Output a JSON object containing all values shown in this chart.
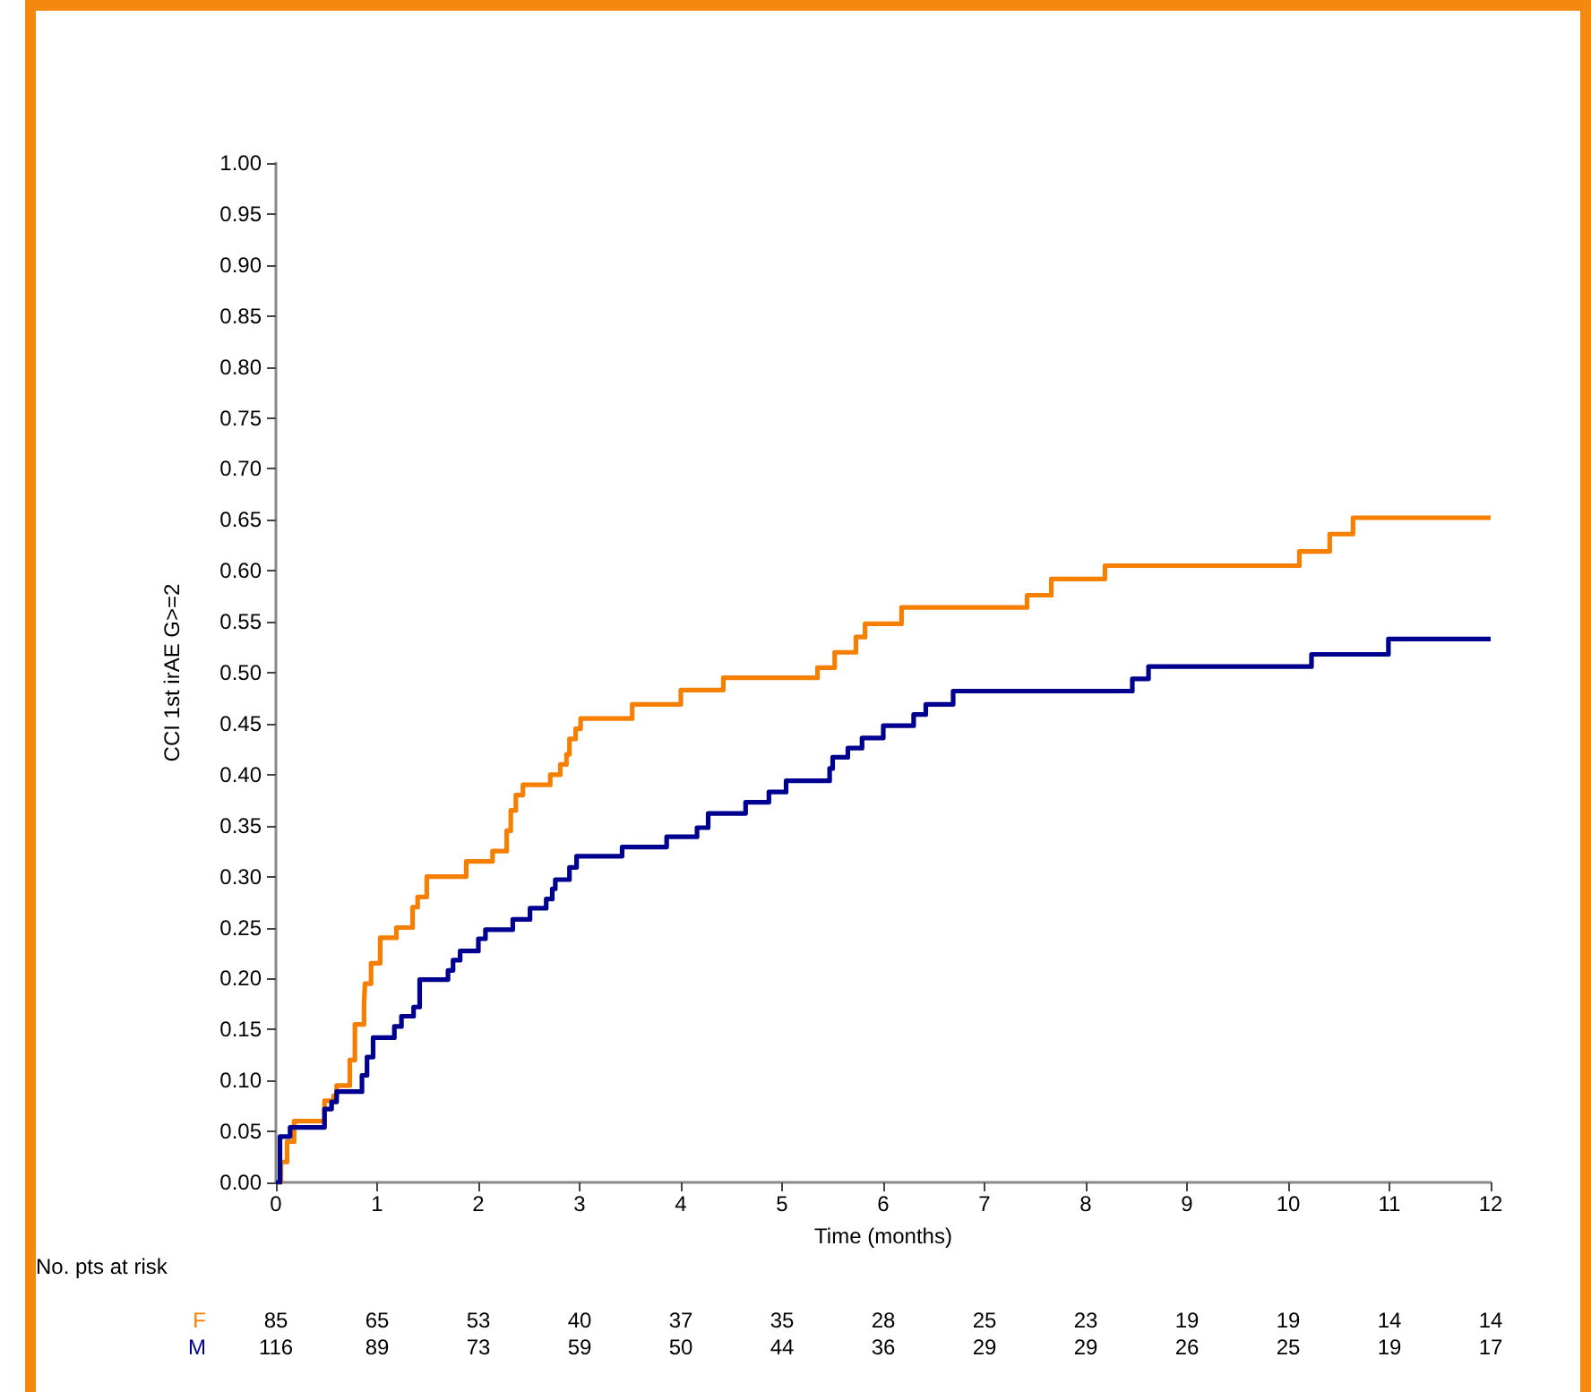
{
  "chart_data": {
    "type": "step",
    "xlabel": "Time (months)",
    "ylabel": "CCI 1st irAE G>=2",
    "xlim": [
      0,
      12
    ],
    "xticks": [
      0,
      1,
      2,
      3,
      4,
      5,
      6,
      7,
      8,
      9,
      10,
      11,
      12
    ],
    "ylim": [
      0,
      1
    ],
    "yticks": [
      {
        "value": 0,
        "label": "0.00"
      },
      {
        "value": 0.05,
        "label": "0.05"
      },
      {
        "value": 0.1,
        "label": "0.10"
      },
      {
        "value": 0.15,
        "label": "0.15"
      },
      {
        "value": 0.2,
        "label": "0.20"
      },
      {
        "value": 0.25,
        "label": "0.25"
      },
      {
        "value": 0.3,
        "label": "0.30"
      },
      {
        "value": 0.35,
        "label": "0.35"
      },
      {
        "value": 0.4,
        "label": "0.40"
      },
      {
        "value": 0.45,
        "label": "0.45"
      },
      {
        "value": 0.5,
        "label": "0.50"
      },
      {
        "value": 0.55,
        "label": "0.55"
      },
      {
        "value": 0.6,
        "label": "0.60"
      },
      {
        "value": 0.65,
        "label": "0.65"
      },
      {
        "value": 0.7,
        "label": "0.70"
      },
      {
        "value": 0.75,
        "label": "0.75"
      },
      {
        "value": 0.8,
        "label": "0.80"
      },
      {
        "value": 0.85,
        "label": "0.85"
      },
      {
        "value": 0.9,
        "label": "0.90"
      },
      {
        "value": 0.95,
        "label": "0.95"
      },
      {
        "value": 1,
        "label": "1.00"
      }
    ],
    "grid": false,
    "legend": false,
    "series": [
      {
        "name": "F",
        "color": "#f77f00",
        "x": [
          0,
          0.05,
          0.11,
          0.18,
          0.48,
          0.57,
          0.6,
          0.73,
          0.78,
          0.87,
          0.88,
          0.94,
          1.03,
          1.19,
          1.35,
          1.4,
          1.49,
          1.88,
          2.14,
          2.28,
          2.32,
          2.37,
          2.44,
          2.71,
          2.81,
          2.87,
          2.9,
          2.96,
          3.01,
          3.52,
          4,
          4.42,
          5.35,
          5.52,
          5.73,
          5.82,
          6.18,
          7.42,
          7.66,
          8.19,
          10.11,
          10.41,
          10.64,
          12
        ],
        "values": [
          0,
          0.02,
          0.04,
          0.06,
          0.08,
          0.085,
          0.095,
          0.12,
          0.155,
          0.175,
          0.195,
          0.215,
          0.24,
          0.25,
          0.27,
          0.28,
          0.3,
          0.315,
          0.325,
          0.345,
          0.365,
          0.38,
          0.39,
          0.4,
          0.41,
          0.42,
          0.435,
          0.445,
          0.455,
          0.469,
          0.483,
          0.495,
          0.505,
          0.52,
          0.535,
          0.548,
          0.564,
          0.576,
          0.592,
          0.605,
          0.619,
          0.636,
          0.652,
          0.652
        ]
      },
      {
        "name": "M",
        "color": "#000090",
        "x": [
          0,
          0.04,
          0.14,
          0.48,
          0.55,
          0.6,
          0.85,
          0.9,
          0.96,
          1.17,
          1.24,
          1.36,
          1.42,
          1.7,
          1.75,
          1.82,
          2,
          2.07,
          2.34,
          2.51,
          2.67,
          2.73,
          2.76,
          2.9,
          2.97,
          3.42,
          3.86,
          4.16,
          4.27,
          4.64,
          4.87,
          5.04,
          5.47,
          5.5,
          5.65,
          5.79,
          6,
          6.3,
          6.42,
          6.69,
          8.46,
          8.62,
          10.23,
          10.99,
          12
        ],
        "values": [
          0,
          0.045,
          0.054,
          0.072,
          0.079,
          0.089,
          0.105,
          0.123,
          0.142,
          0.153,
          0.163,
          0.172,
          0.199,
          0.208,
          0.218,
          0.227,
          0.239,
          0.248,
          0.258,
          0.269,
          0.278,
          0.288,
          0.297,
          0.309,
          0.32,
          0.329,
          0.339,
          0.348,
          0.362,
          0.373,
          0.383,
          0.394,
          0.406,
          0.417,
          0.426,
          0.436,
          0.448,
          0.459,
          0.469,
          0.482,
          0.494,
          0.506,
          0.518,
          0.533,
          0.533
        ]
      }
    ],
    "annotations": [
      "No. pts at risk",
      "85",
      "65",
      "53",
      "40",
      "37",
      "35",
      "28",
      "25",
      "23",
      "19",
      "19",
      "14",
      "14",
      "116",
      "89",
      "73",
      "59",
      "50",
      "44",
      "36",
      "29",
      "29",
      "26",
      "25",
      "19",
      "17"
    ]
  }
}
